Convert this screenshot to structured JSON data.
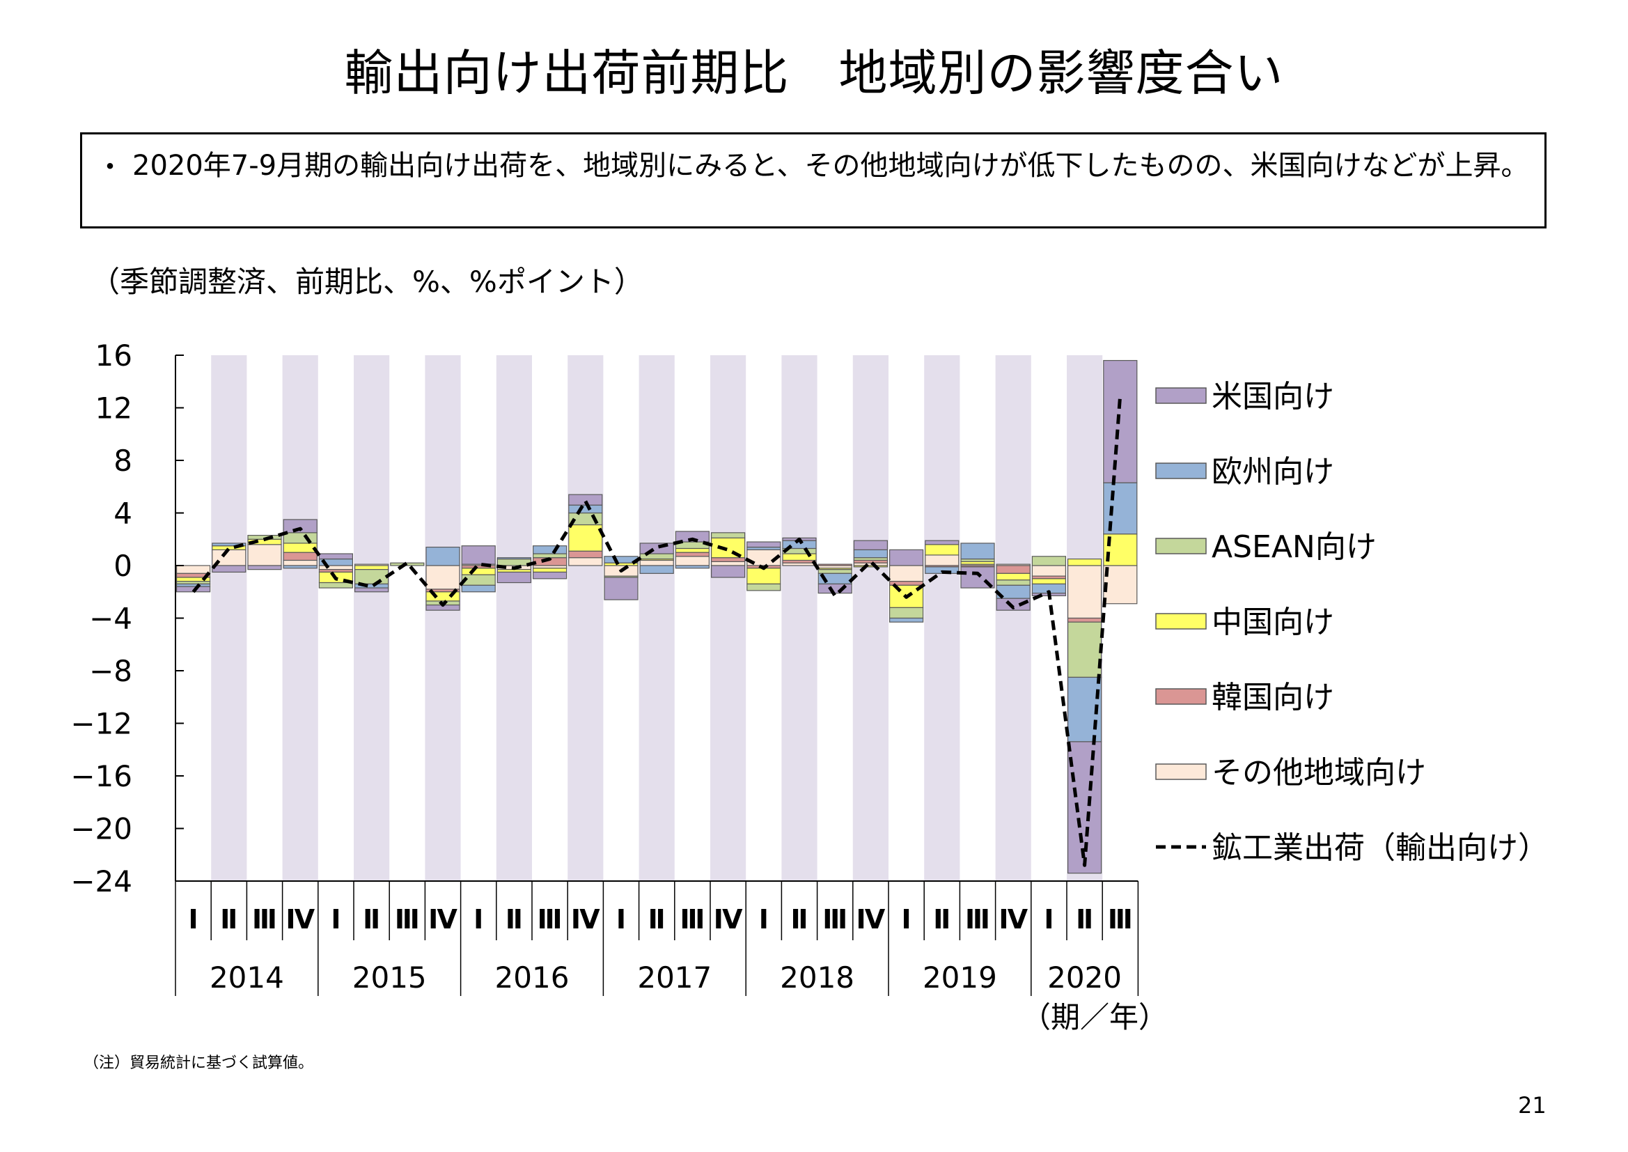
{
  "slide": {
    "title": "輸出向け出荷前期比　地域別の影響度合い",
    "bullet": "・",
    "summary": "2020年7-9月期の輸出向け出荷を、地域別にみると、その他地域向けが低下したものの、米国向けなどが上昇。",
    "units_note": "（季節調整済、前期比、%、%ポイント）",
    "axis_period_label": "（期／年）",
    "footnote": "（注）貿易統計に基づく試算値。",
    "page_number": "21"
  },
  "chart_data": {
    "type": "bar",
    "stacked": true,
    "ylim": [
      -24,
      16
    ],
    "yticks": [
      16,
      12,
      8,
      4,
      0,
      -4,
      -8,
      -12,
      -16,
      -20,
      -24
    ],
    "quarter_labels": [
      "Ⅰ",
      "Ⅱ",
      "Ⅲ",
      "Ⅳ",
      "Ⅰ",
      "Ⅱ",
      "Ⅲ",
      "Ⅳ",
      "Ⅰ",
      "Ⅱ",
      "Ⅲ",
      "Ⅳ",
      "Ⅰ",
      "Ⅱ",
      "Ⅲ",
      "Ⅳ",
      "Ⅰ",
      "Ⅱ",
      "Ⅲ",
      "Ⅳ",
      "Ⅰ",
      "Ⅱ",
      "Ⅲ",
      "Ⅳ",
      "Ⅰ",
      "Ⅱ",
      "Ⅲ"
    ],
    "years": [
      {
        "label": "2014",
        "quarters": 4
      },
      {
        "label": "2015",
        "quarters": 4
      },
      {
        "label": "2016",
        "quarters": 4
      },
      {
        "label": "2017",
        "quarters": 4
      },
      {
        "label": "2018",
        "quarters": 4
      },
      {
        "label": "2019",
        "quarters": 4
      },
      {
        "label": "2020",
        "quarters": 3
      }
    ],
    "shaded_quarter": "Ⅱ/Ⅳ",
    "shade_color": "#e4dfec",
    "series": [
      {
        "name": "その他地域向け",
        "color": "#fde9d9",
        "values": [
          -0.6,
          1.2,
          1.6,
          0.4,
          -0.3,
          0.1,
          0.0,
          -1.8,
          0.1,
          -0.3,
          -0.2,
          0.6,
          -0.8,
          0.4,
          0.7,
          0.3,
          1.2,
          0.2,
          -0.2,
          0.2,
          -1.2,
          0.8,
          0.1,
          0.1,
          -0.8,
          -4.0,
          -2.9
        ]
      },
      {
        "name": "韓国向け",
        "color": "#da9694",
        "values": [
          -0.3,
          0.0,
          0.0,
          0.6,
          -0.2,
          0.0,
          0.0,
          -0.2,
          -0.2,
          0.0,
          0.6,
          0.5,
          0.0,
          0.0,
          0.3,
          0.3,
          -0.2,
          0.2,
          0.1,
          0.2,
          -0.3,
          -0.1,
          -0.1,
          -0.6,
          -0.2,
          -0.3,
          0.0
        ]
      },
      {
        "name": "中国向け",
        "color": "#ffff66",
        "values": [
          -0.3,
          0.3,
          0.4,
          0.7,
          -0.8,
          -0.3,
          0.0,
          -0.7,
          -0.5,
          -0.2,
          -0.3,
          2.0,
          0.2,
          0.1,
          0.3,
          1.5,
          -1.2,
          0.5,
          -0.1,
          -0.1,
          -1.7,
          0.8,
          0.2,
          -0.5,
          -0.4,
          0.5,
          2.4
        ]
      },
      {
        "name": "ASEAN向け",
        "color": "#c4d79b",
        "values": [
          -0.2,
          0.0,
          0.3,
          0.8,
          -0.4,
          -1.1,
          0.2,
          -0.3,
          -0.8,
          0.5,
          0.3,
          0.9,
          -0.1,
          0.4,
          0.5,
          0.4,
          -0.5,
          0.4,
          -0.3,
          0.2,
          -0.8,
          0.0,
          0.2,
          -0.4,
          0.7,
          -4.2,
          0.0
        ]
      },
      {
        "name": "欧州向け",
        "color": "#95b3d7",
        "values": [
          -0.2,
          0.2,
          0.0,
          -0.2,
          0.5,
          -0.3,
          0.0,
          1.4,
          -0.5,
          0.1,
          0.6,
          0.6,
          0.5,
          -0.6,
          -0.2,
          0.0,
          0.2,
          0.6,
          -0.8,
          0.6,
          -0.3,
          -0.5,
          1.2,
          -1.0,
          -0.7,
          -4.9,
          3.9
        ]
      },
      {
        "name": "米国向け",
        "color": "#b1a0c7",
        "values": [
          -0.4,
          -0.5,
          -0.3,
          1.0,
          0.4,
          -0.3,
          0.0,
          -0.4,
          1.4,
          -0.8,
          -0.5,
          0.8,
          -1.7,
          0.8,
          0.8,
          -0.9,
          0.4,
          0.2,
          -0.7,
          0.7,
          1.2,
          0.3,
          -1.6,
          -0.9,
          -0.2,
          -10.0,
          9.3
        ]
      },
      {
        "name": "鉱工業出荷（輸出向け）",
        "type": "line",
        "style": "dashed",
        "color": "#000000",
        "values": [
          -2.0,
          1.3,
          2.0,
          2.8,
          -1.0,
          -1.6,
          0.2,
          -3.0,
          0.1,
          -0.2,
          0.5,
          4.9,
          -0.4,
          1.4,
          2.0,
          1.2,
          -0.2,
          2.0,
          -2.3,
          0.3,
          -2.4,
          -0.5,
          -0.6,
          -3.2,
          -2.0,
          -22.8,
          13.0
        ]
      }
    ]
  }
}
